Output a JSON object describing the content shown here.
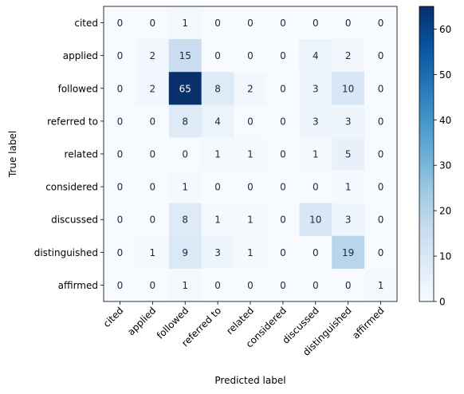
{
  "chart_data": {
    "type": "heatmap",
    "title": "",
    "xlabel": "Predicted label",
    "ylabel": "True label",
    "x_categories": [
      "cited",
      "applied",
      "followed",
      "referred to",
      "related",
      "considered",
      "discussed",
      "distinguished",
      "affirmed"
    ],
    "y_categories": [
      "cited",
      "applied",
      "followed",
      "referred to",
      "related",
      "considered",
      "discussed",
      "distinguished",
      "affirmed"
    ],
    "values": [
      [
        0,
        0,
        1,
        0,
        0,
        0,
        0,
        0,
        0
      ],
      [
        0,
        2,
        15,
        0,
        0,
        0,
        4,
        2,
        0
      ],
      [
        0,
        2,
        65,
        8,
        2,
        0,
        3,
        10,
        0
      ],
      [
        0,
        0,
        8,
        4,
        0,
        0,
        3,
        3,
        0
      ],
      [
        0,
        0,
        0,
        1,
        1,
        0,
        1,
        5,
        0
      ],
      [
        0,
        0,
        1,
        0,
        0,
        0,
        0,
        1,
        0
      ],
      [
        0,
        0,
        8,
        1,
        1,
        0,
        10,
        3,
        0
      ],
      [
        0,
        1,
        9,
        3,
        1,
        0,
        0,
        19,
        0
      ],
      [
        0,
        0,
        1,
        0,
        0,
        0,
        0,
        0,
        1
      ]
    ],
    "colorbar": {
      "colormap": "Blues",
      "range": [
        0,
        65
      ],
      "ticks": [
        0,
        10,
        20,
        30,
        40,
        50,
        60
      ]
    },
    "grid": false
  }
}
